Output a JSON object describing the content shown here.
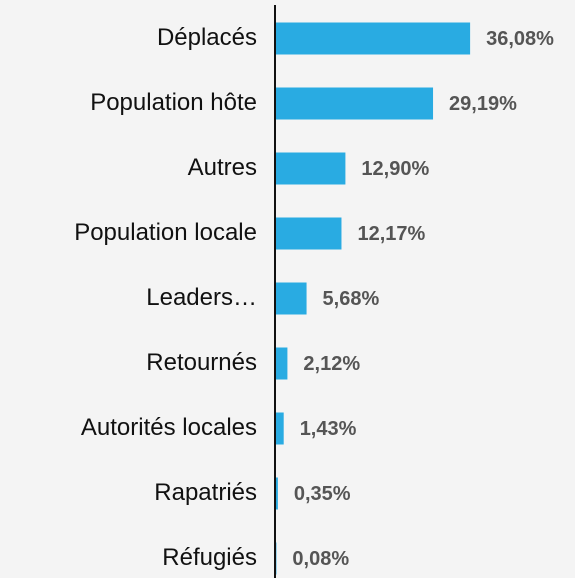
{
  "chart_data": {
    "type": "hbar",
    "color": "#29abe2",
    "categories": [
      "Déplacés",
      "Population hôte",
      "Autres",
      "Population locale",
      "Leaders…",
      "Retournés",
      "Autorités locales",
      "Rapatriés",
      "Réfugiés"
    ],
    "values": [
      36.08,
      29.19,
      12.9,
      12.17,
      5.68,
      2.12,
      1.43,
      0.35,
      0.08
    ],
    "value_labels": [
      "36,08%",
      "29,19%",
      "12,90%",
      "12,17%",
      "5,68%",
      "2,12%",
      "1,43%",
      "0,35%",
      "0,08%"
    ]
  }
}
